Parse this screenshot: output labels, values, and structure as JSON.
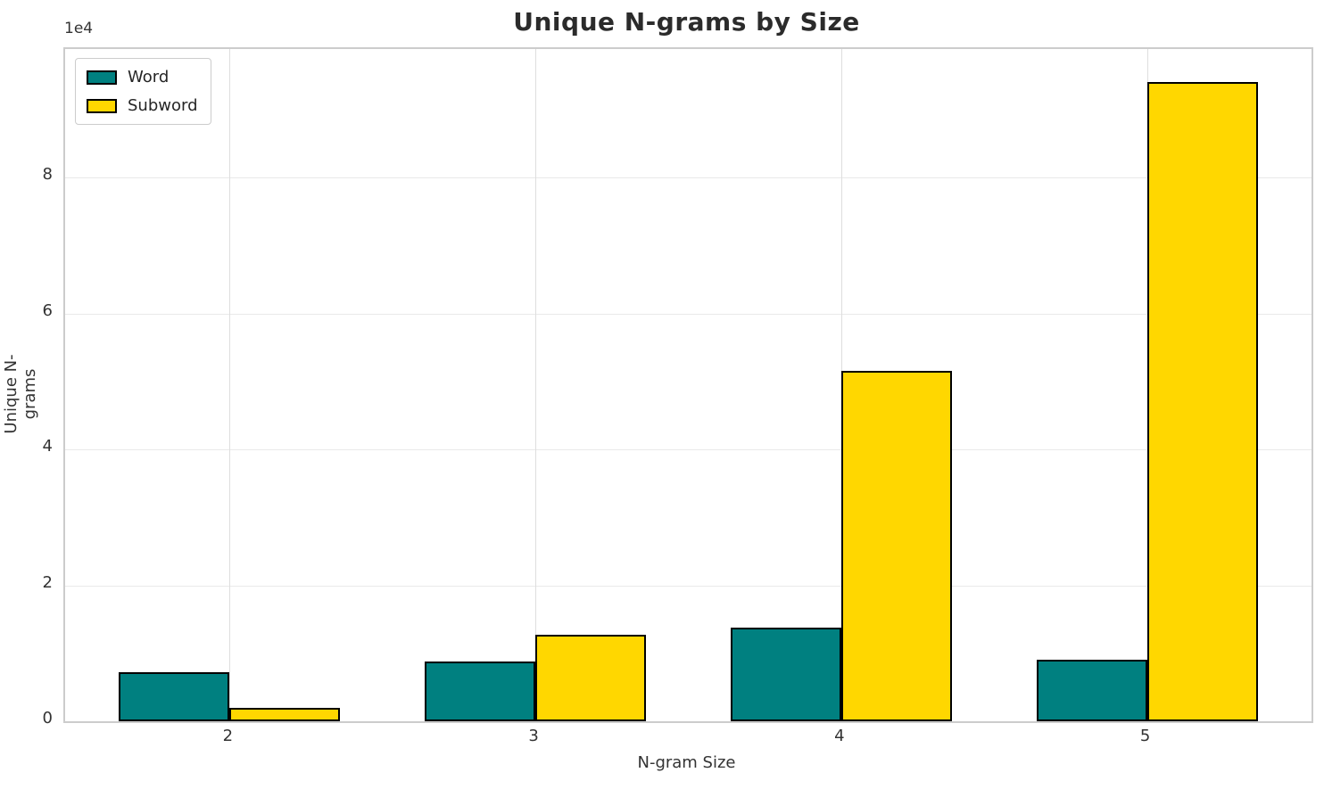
{
  "title": "Unique N-grams by Size",
  "axis": {
    "x_label": "N-gram Size",
    "y_label": "Unique N-grams",
    "y_offset_label": "1e4"
  },
  "legend": {
    "position": "upper left",
    "items": [
      {
        "label": "Word",
        "color": "#008080"
      },
      {
        "label": "Subword",
        "color": "#ffd700"
      }
    ]
  },
  "colors": {
    "word": "#008080",
    "subword": "#ffd700",
    "bar_edge": "#000000",
    "grid_h": "#e9e9e9",
    "grid_v": "#dedede",
    "spine": "#cccccc",
    "text": "#333333",
    "title_text": "#2b2b2b",
    "background": "#ffffff"
  },
  "chart_data": {
    "type": "bar",
    "title": "Unique N-grams by Size",
    "xlabel": "N-gram Size",
    "ylabel": "Unique N-grams",
    "categories": [
      "2",
      "3",
      "4",
      "5"
    ],
    "series": [
      {
        "name": "Word",
        "color": "#008080",
        "values": [
          7200,
          8800,
          13800,
          9000
        ]
      },
      {
        "name": "Subword",
        "color": "#ffd700",
        "values": [
          2000,
          12700,
          51600,
          94100
        ]
      }
    ],
    "ylim": [
      0,
      98900
    ],
    "yticks": [
      0,
      20000,
      40000,
      60000,
      80000
    ],
    "ytick_labels": [
      "0",
      "2",
      "4",
      "6",
      "8"
    ],
    "y_offset_label": "1e4",
    "grid": true,
    "legend_position": "upper left",
    "bar_edge_color": "#000000",
    "bar_edge_width": 2.5
  }
}
